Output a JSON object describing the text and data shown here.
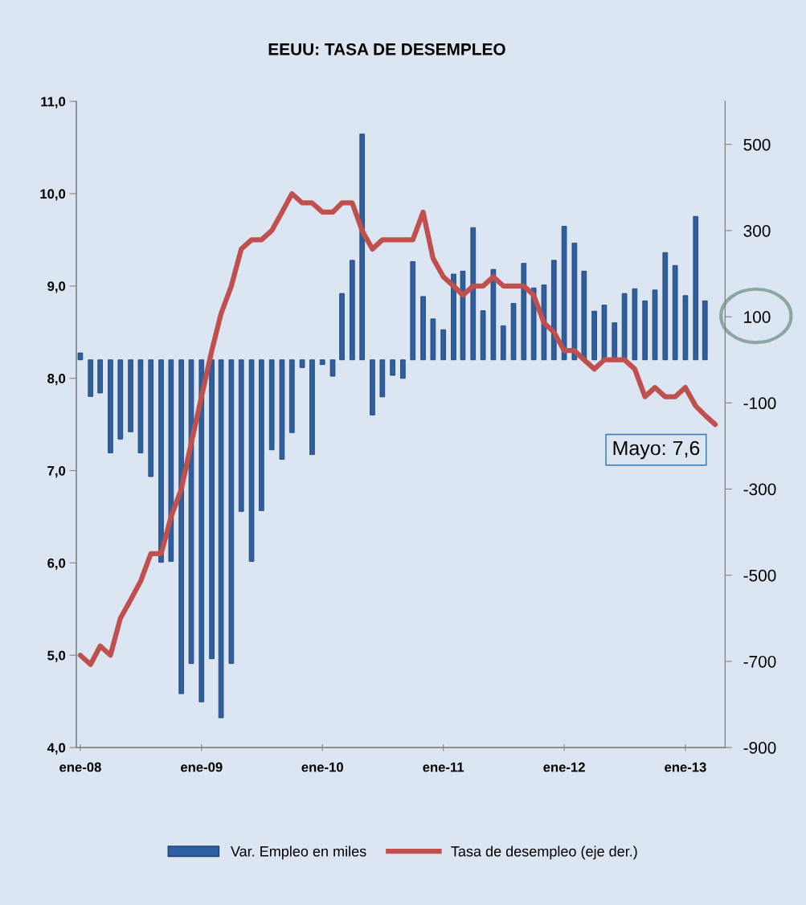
{
  "chart_data": {
    "type": "bar",
    "title": "EEUU: TASA DE DESEMPLEO",
    "xlim": [
      "2007-12-20",
      "2013-05-01"
    ],
    "xticks": [
      {
        "value": "2008-01",
        "label": "ene-08"
      },
      {
        "value": "2009-01",
        "label": "ene-09"
      },
      {
        "value": "2010-01",
        "label": "ene-10"
      },
      {
        "value": "2011-01",
        "label": "ene-11"
      },
      {
        "value": "2012-01",
        "label": "ene-12"
      },
      {
        "value": "2013-01",
        "label": "ene-13"
      }
    ],
    "ylim": [
      4,
      11
    ],
    "yticks": [
      {
        "value": 4,
        "label": "4,0"
      },
      {
        "value": 5,
        "label": "5,0"
      },
      {
        "value": 6,
        "label": "6,0"
      },
      {
        "value": 7,
        "label": "7,0"
      },
      {
        "value": 8,
        "label": "8,0"
      },
      {
        "value": 9,
        "label": "9,0"
      },
      {
        "value": 10,
        "label": "10,0"
      },
      {
        "value": 11,
        "label": "11,0"
      }
    ],
    "y2lim": [
      -900,
      600
    ],
    "y2ticks": [
      -900,
      -700,
      -500,
      -300,
      -100,
      100,
      300,
      500
    ],
    "series": [
      {
        "name": "Var. Empleo en miles",
        "axis": "y2",
        "color": "#2e5f9e",
        "x": [
          "2008-01",
          "2008-02",
          "2008-03",
          "2008-04",
          "2008-05",
          "2008-06",
          "2008-07",
          "2008-08",
          "2008-09",
          "2008-10",
          "2008-11",
          "2008-12",
          "2009-01",
          "2009-02",
          "2009-03",
          "2009-04",
          "2009-05",
          "2009-06",
          "2009-07",
          "2009-08",
          "2009-09",
          "2009-10",
          "2009-11",
          "2009-12",
          "2010-01",
          "2010-02",
          "2010-03",
          "2010-04",
          "2010-05",
          "2010-06",
          "2010-07",
          "2010-08",
          "2010-09",
          "2010-10",
          "2010-11",
          "2010-12",
          "2011-01",
          "2011-02",
          "2011-03",
          "2011-04",
          "2011-05",
          "2011-06",
          "2011-07",
          "2011-08",
          "2011-09",
          "2011-10",
          "2011-11",
          "2011-12",
          "2012-01",
          "2012-02",
          "2012-03",
          "2012-04",
          "2012-05",
          "2012-06",
          "2012-07",
          "2012-08",
          "2012-09",
          "2012-10",
          "2012-11",
          "2012-12",
          "2013-01",
          "2013-02",
          "2013-03"
        ],
        "values": [
          16,
          -85,
          -77,
          -216,
          -184,
          -167,
          -216,
          -271,
          -470,
          -468,
          -775,
          -705,
          -794,
          -694,
          -831,
          -705,
          -352,
          -468,
          -350,
          -209,
          -231,
          -169,
          -18,
          -220,
          -11,
          -38,
          154,
          231,
          524,
          -128,
          -86,
          -36,
          -43,
          228,
          147,
          95,
          70,
          199,
          206,
          307,
          114,
          210,
          79,
          131,
          224,
          167,
          174,
          231,
          310,
          271,
          206,
          113,
          127,
          86,
          154,
          165,
          137,
          162,
          249,
          219,
          149,
          333,
          137
        ]
      },
      {
        "name": "Tasa de desempleo (eje der.)",
        "type": "line",
        "color": "#c0504d",
        "x": [
          "2008-01",
          "2008-02",
          "2008-03",
          "2008-04",
          "2008-05",
          "2008-06",
          "2008-07",
          "2008-08",
          "2008-09",
          "2008-10",
          "2008-11",
          "2008-12",
          "2009-01",
          "2009-02",
          "2009-03",
          "2009-04",
          "2009-05",
          "2009-06",
          "2009-07",
          "2009-08",
          "2009-09",
          "2009-10",
          "2009-11",
          "2009-12",
          "2010-01",
          "2010-02",
          "2010-03",
          "2010-04",
          "2010-05",
          "2010-06",
          "2010-07",
          "2010-08",
          "2010-09",
          "2010-10",
          "2010-11",
          "2010-12",
          "2011-01",
          "2011-02",
          "2011-03",
          "2011-04",
          "2011-05",
          "2011-06",
          "2011-07",
          "2011-08",
          "2011-09",
          "2011-10",
          "2011-11",
          "2011-12",
          "2012-01",
          "2012-02",
          "2012-03",
          "2012-04",
          "2012-05",
          "2012-06",
          "2012-07",
          "2012-08",
          "2012-09",
          "2012-10",
          "2012-11",
          "2012-12",
          "2013-01",
          "2013-02",
          "2013-03",
          "2013-04"
        ],
        "values": [
          5.0,
          4.9,
          5.1,
          5.0,
          5.4,
          5.6,
          5.8,
          6.1,
          6.1,
          6.5,
          6.8,
          7.3,
          7.8,
          8.3,
          8.7,
          9.0,
          9.4,
          9.5,
          9.5,
          9.6,
          9.8,
          10.0,
          9.9,
          9.9,
          9.8,
          9.8,
          9.9,
          9.9,
          9.6,
          9.4,
          9.5,
          9.5,
          9.5,
          9.5,
          9.8,
          9.3,
          9.1,
          9.0,
          8.9,
          9.0,
          9.0,
          9.1,
          9.0,
          9.0,
          9.0,
          8.9,
          8.6,
          8.5,
          8.3,
          8.3,
          8.2,
          8.1,
          8.2,
          8.2,
          8.2,
          8.1,
          7.8,
          7.9,
          7.8,
          7.8,
          7.9,
          7.7,
          7.6,
          7.5
        ]
      }
    ],
    "annotations": [
      "Mayo: 7,6"
    ],
    "legend": "bottom",
    "grid": false
  }
}
